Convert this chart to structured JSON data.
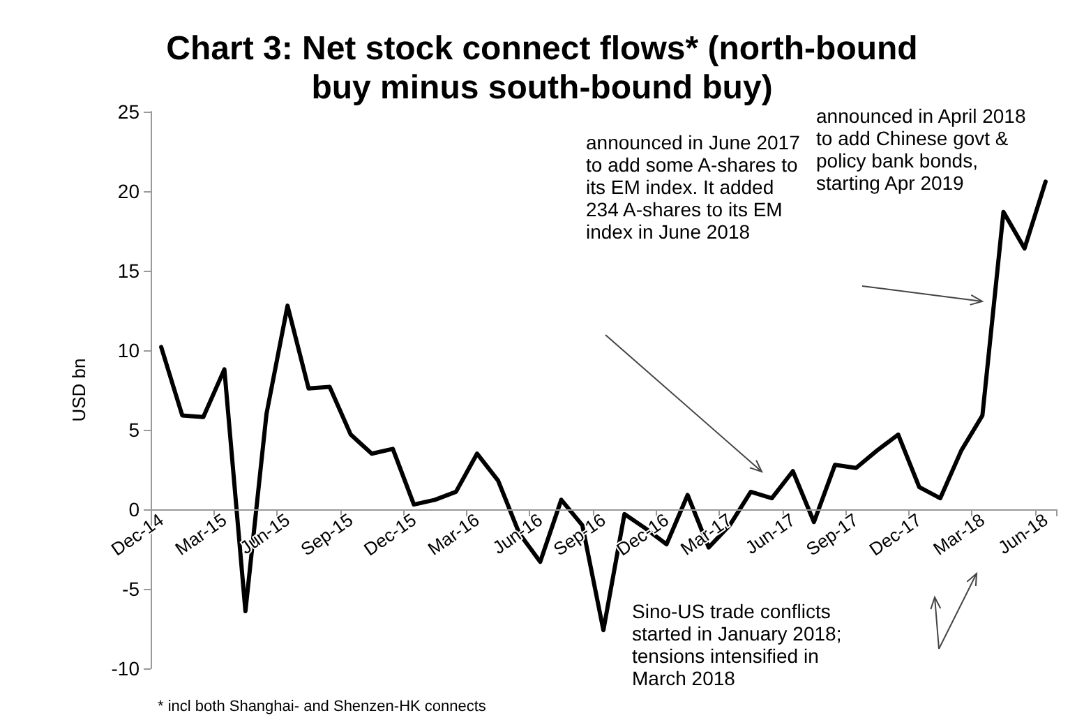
{
  "chart_data": {
    "type": "line",
    "title": "Chart 3: Net stock connect flows* (north-bound\nbuy minus south-bound buy)",
    "ylabel": "USD bn",
    "categories": [
      "Dec-14",
      null,
      null,
      "Mar-15",
      null,
      null,
      "Jun-15",
      null,
      null,
      "Sep-15",
      null,
      null,
      "Dec-15",
      null,
      null,
      "Mar-16",
      null,
      null,
      "Jun-16",
      null,
      null,
      "Sep-16",
      null,
      null,
      "Dec-16",
      null,
      null,
      "Mar-17",
      null,
      null,
      "Jun-17",
      null,
      null,
      "Sep-17",
      null,
      null,
      "Dec-17",
      null,
      null,
      "Mar-18",
      null,
      null,
      "Jun-18"
    ],
    "series": [
      {
        "color": "#000000",
        "values": [
          10.2,
          5.9,
          5.8,
          8.8,
          -6.4,
          6.0,
          12.8,
          7.6,
          7.7,
          4.7,
          3.5,
          3.8,
          0.3,
          0.6,
          1.1,
          3.5,
          1.8,
          -1.5,
          -3.3,
          0.6,
          -1.0,
          -7.6,
          -0.3,
          -1.2,
          -2.2,
          0.9,
          -2.4,
          -1.0,
          1.1,
          0.7,
          2.4,
          -0.8,
          2.8,
          2.6,
          3.7,
          4.7,
          1.4,
          0.7,
          3.7,
          5.9,
          18.7,
          16.4,
          20.6
        ]
      }
    ],
    "ylim": [
      -10,
      25
    ],
    "yticks": [
      -10,
      -5,
      0,
      5,
      10,
      15,
      20,
      25
    ],
    "marker": "none",
    "line_style": "solid",
    "annotations": [
      "announced in June 2017 to add some A-shares to its EM index. It added 234 A-shares to its EM index in June 2018",
      "announced in April 2018 to add Chinese govt & policy bank bonds, starting Apr 2019",
      "Sino-US trade conflicts started in January 2018; tensions intensified in March 2018",
      "* incl both Shanghai- and Shenzen-HK connects"
    ]
  }
}
